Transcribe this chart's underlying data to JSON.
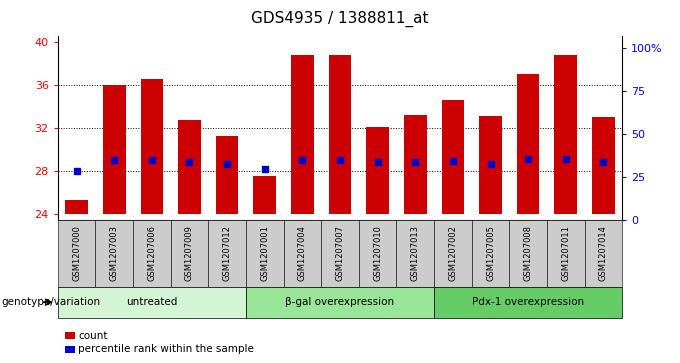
{
  "title": "GDS4935 / 1388811_at",
  "samples": [
    "GSM1207000",
    "GSM1207003",
    "GSM1207006",
    "GSM1207009",
    "GSM1207012",
    "GSM1207001",
    "GSM1207004",
    "GSM1207007",
    "GSM1207010",
    "GSM1207013",
    "GSM1207002",
    "GSM1207005",
    "GSM1207008",
    "GSM1207011",
    "GSM1207014"
  ],
  "counts": [
    25.3,
    36.0,
    36.5,
    32.7,
    31.3,
    27.5,
    38.8,
    38.8,
    32.1,
    33.2,
    34.6,
    33.1,
    37.0,
    38.8,
    33.0
  ],
  "percentile_values": [
    28,
    29,
    29,
    28.8,
    28.7,
    28.2,
    29,
    29,
    28.8,
    28.8,
    28.9,
    28.7,
    29.1,
    29.1,
    28.8
  ],
  "groups": [
    {
      "label": "untreated",
      "start": 0,
      "end": 5,
      "color": "#d4f5d4"
    },
    {
      "label": "β-gal overexpression",
      "start": 5,
      "end": 10,
      "color": "#99e699"
    },
    {
      "label": "Pdx-1 overexpression",
      "start": 10,
      "end": 15,
      "color": "#66cc66"
    }
  ],
  "ylim_left": [
    23.5,
    40.5
  ],
  "ylim_right": [
    0,
    107
  ],
  "yticks_left": [
    24,
    28,
    32,
    36,
    40
  ],
  "yticks_right": [
    0,
    25,
    50,
    75,
    100
  ],
  "yticklabels_right": [
    "0",
    "25",
    "50",
    "75",
    "100%"
  ],
  "bar_color": "#cc0000",
  "dot_color": "#0000cc",
  "bar_width": 0.6,
  "legend_label_count": "count",
  "legend_label_percentile": "percentile rank within the sample",
  "genotype_label": "genotype/variation"
}
